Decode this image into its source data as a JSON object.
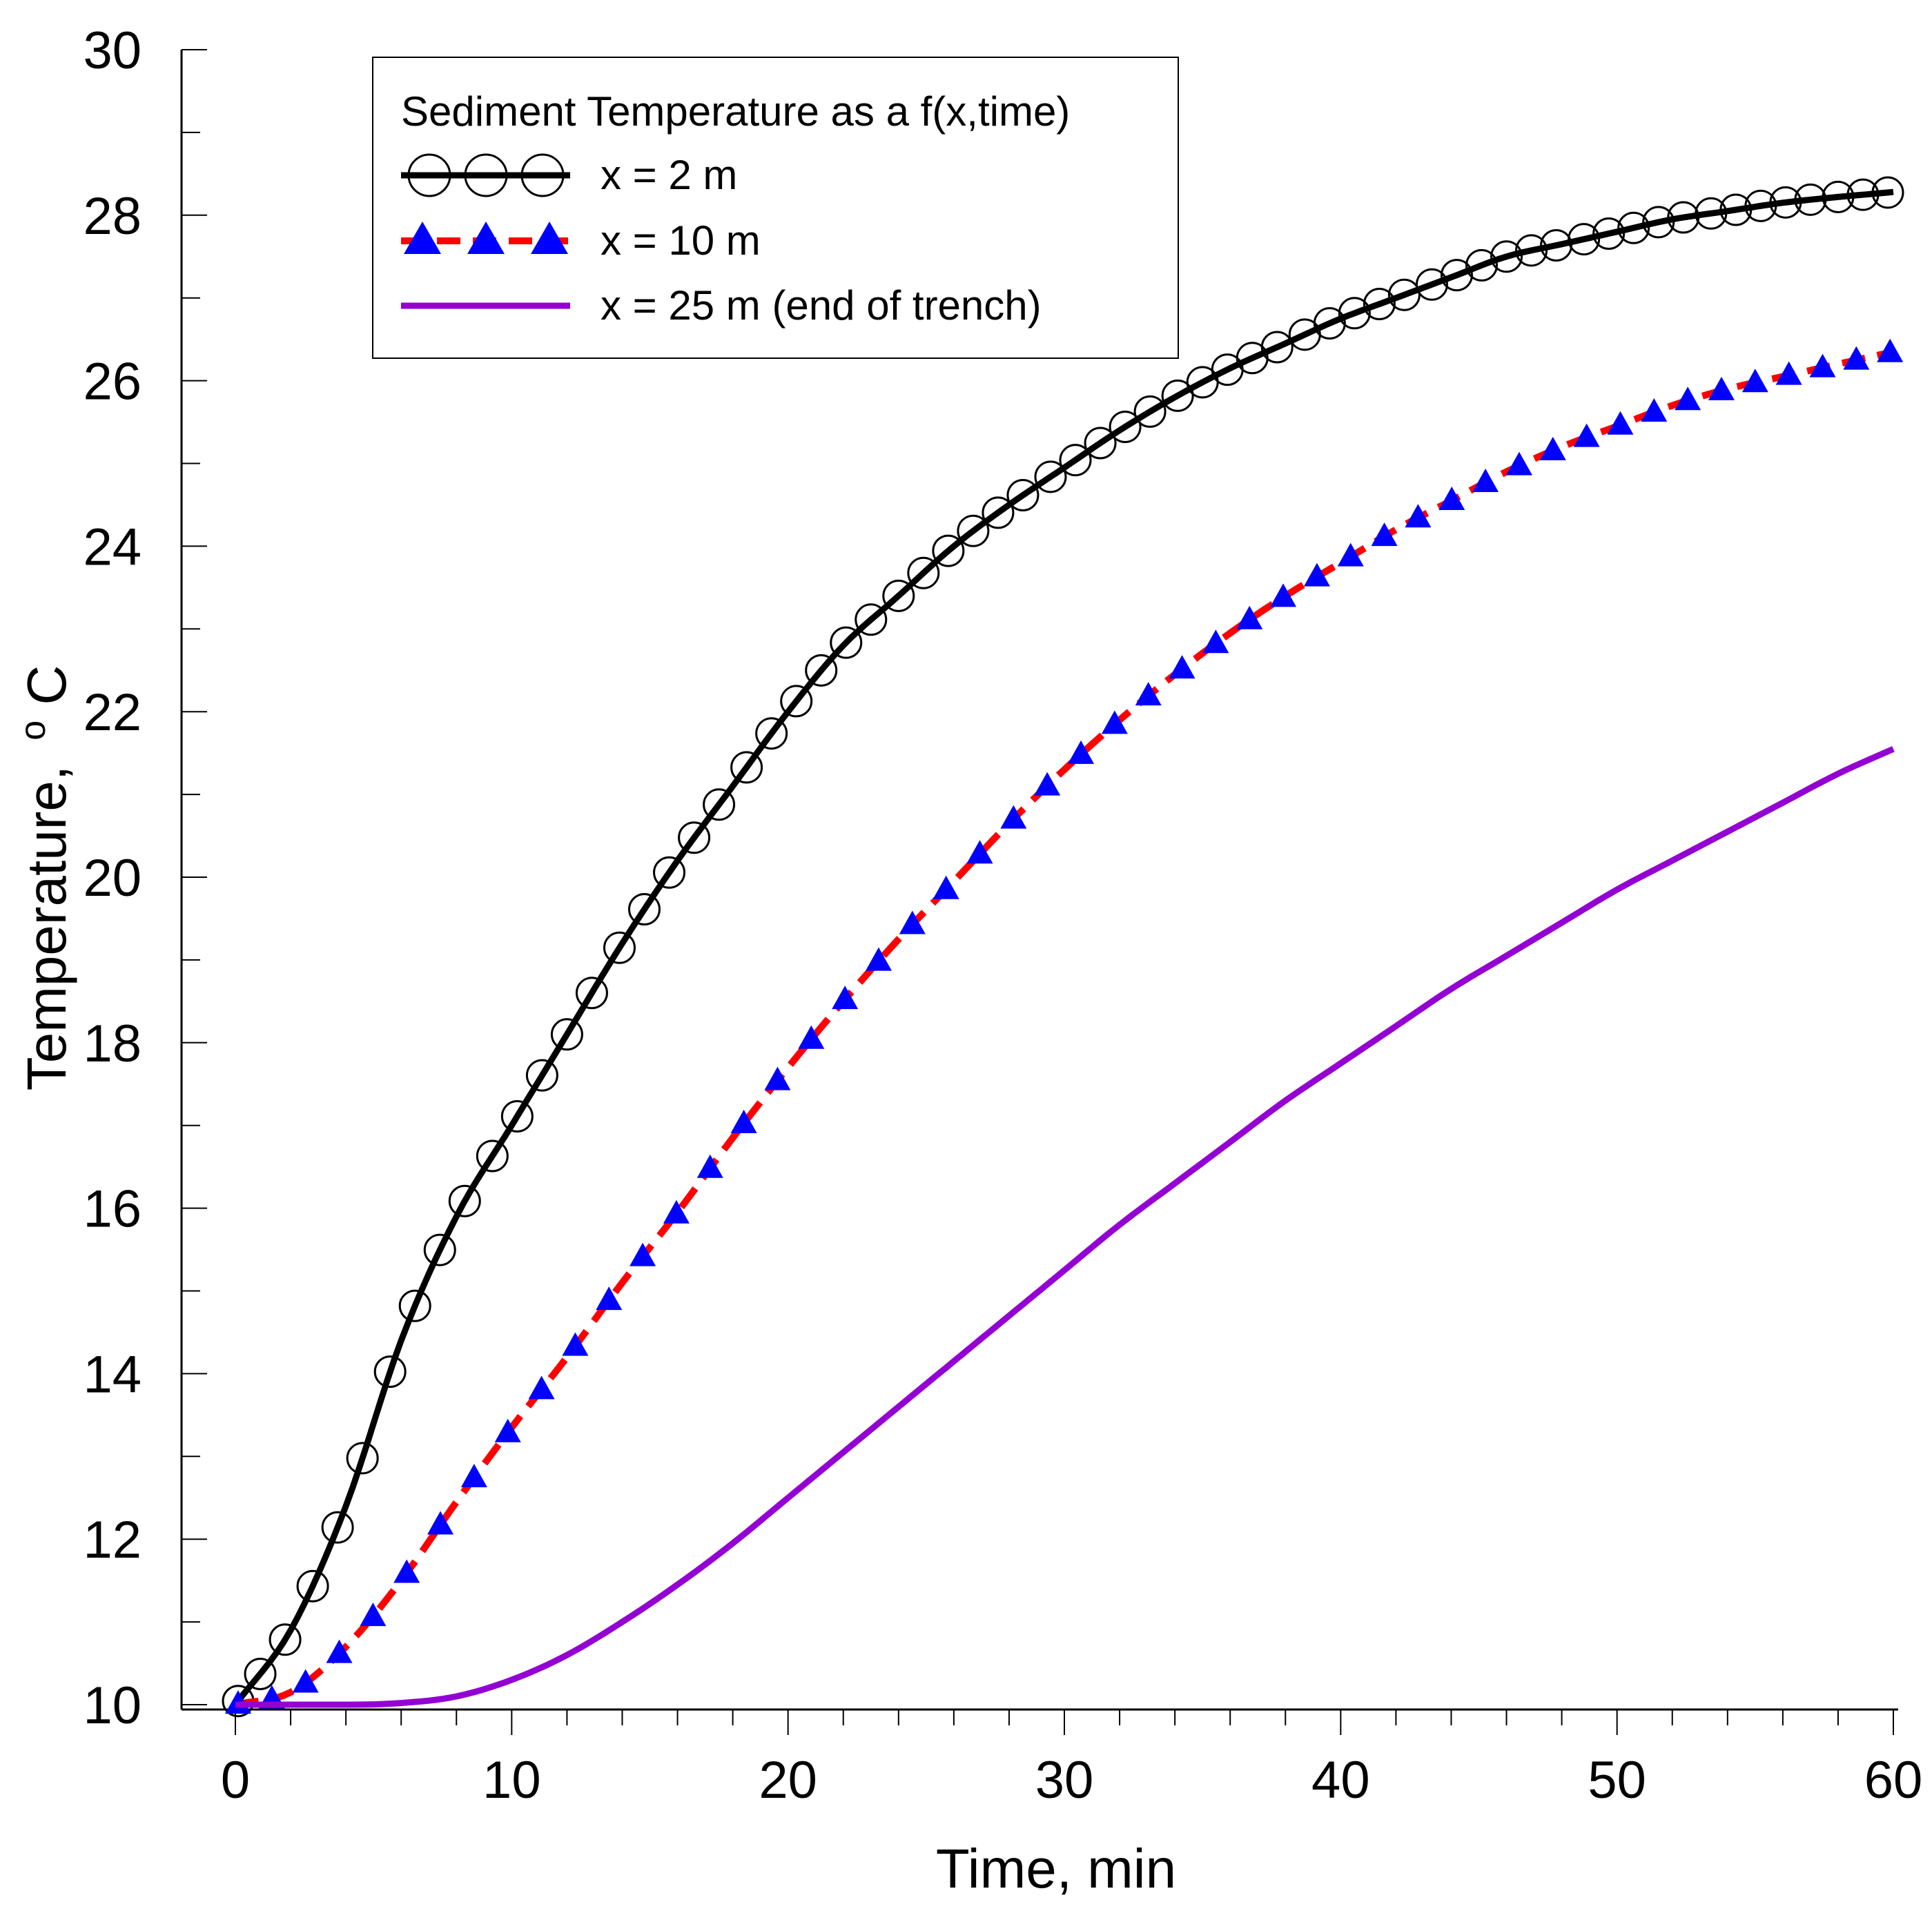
{
  "chart_data": {
    "type": "line",
    "title": "",
    "xlabel": "Time, min",
    "ylabel": "Temperature,",
    "ylabel_unit_sup": "o",
    "ylabel_unit": "C",
    "xlim": [
      0,
      60
    ],
    "ylim": [
      10,
      30
    ],
    "x_ticks": [
      0,
      10,
      20,
      30,
      40,
      50,
      60
    ],
    "y_ticks": [
      10,
      12,
      14,
      16,
      18,
      20,
      22,
      24,
      26,
      28,
      30
    ],
    "grid": false,
    "legend": {
      "title": "Sediment Temperature as a f(x,time)",
      "position": "top-left"
    },
    "series": [
      {
        "name": "x = 2 m",
        "line_color": "#000000",
        "line_style": "solid",
        "marker": "open-circle",
        "x": [
          0,
          2,
          4,
          6,
          8,
          10,
          12,
          14,
          16,
          18,
          20,
          22,
          24,
          26,
          28,
          30,
          32,
          34,
          36,
          38,
          40,
          42,
          44,
          46,
          48,
          50,
          52,
          54,
          56,
          58,
          60
        ],
        "y": [
          10.0,
          10.9,
          12.4,
          14.4,
          15.9,
          17.0,
          18.1,
          19.2,
          20.2,
          21.1,
          22.0,
          22.8,
          23.4,
          24.0,
          24.5,
          24.95,
          25.4,
          25.8,
          26.15,
          26.45,
          26.75,
          27.0,
          27.25,
          27.5,
          27.65,
          27.8,
          27.95,
          28.05,
          28.15,
          28.22,
          28.28
        ],
        "marker_x": [
          0.1,
          0.9,
          1.8,
          2.8,
          3.7,
          4.6,
          5.6,
          6.5,
          7.4,
          8.3,
          9.3,
          10.2,
          11.1,
          12.0,
          12.9,
          13.9,
          14.8,
          15.7,
          16.6,
          17.5,
          18.5,
          19.4,
          20.3,
          21.2,
          22.1,
          23.0,
          24.0,
          24.9,
          25.8,
          26.7,
          27.6,
          28.5,
          29.5,
          30.4,
          31.3,
          32.2,
          33.1,
          34.1,
          35.0,
          35.9,
          36.8,
          37.7,
          38.7,
          39.6,
          40.5,
          41.4,
          42.3,
          43.3,
          44.2,
          45.1,
          46.0,
          46.9,
          47.8,
          48.8,
          49.7,
          50.6,
          51.5,
          52.4,
          53.4,
          54.3,
          55.2,
          56.1,
          57.0,
          58.0,
          58.9,
          59.8
        ]
      },
      {
        "name": "x = 10 m",
        "line_color": "#ff0000",
        "line_style": "dashed",
        "marker": "filled-triangle",
        "marker_color": "#0000ff",
        "x": [
          0,
          2,
          4,
          6,
          8,
          10,
          12,
          14,
          16,
          18,
          20,
          22,
          24,
          26,
          28,
          30,
          32,
          34,
          36,
          38,
          40,
          42,
          44,
          46,
          48,
          50,
          52,
          54,
          56,
          58,
          60
        ],
        "y": [
          10.0,
          10.15,
          10.7,
          11.5,
          12.45,
          13.35,
          14.2,
          15.1,
          15.95,
          16.85,
          17.7,
          18.5,
          19.25,
          19.95,
          20.65,
          21.3,
          21.9,
          22.45,
          22.95,
          23.4,
          23.8,
          24.2,
          24.55,
          24.9,
          25.2,
          25.45,
          25.7,
          25.9,
          26.05,
          26.2,
          26.35
        ],
        "marker_step": 1.22
      },
      {
        "name": "x = 25 m (end of trench)",
        "line_color": "#9400d3",
        "line_style": "solid",
        "marker": "none",
        "x": [
          0,
          2,
          4,
          6,
          8,
          10,
          12,
          14,
          16,
          18,
          20,
          22,
          24,
          26,
          28,
          30,
          32,
          34,
          36,
          38,
          40,
          42,
          44,
          46,
          48,
          50,
          52,
          54,
          56,
          58,
          60
        ],
        "y": [
          10.0,
          10.0,
          10.0,
          10.02,
          10.1,
          10.3,
          10.6,
          11.0,
          11.45,
          11.95,
          12.5,
          13.05,
          13.6,
          14.15,
          14.7,
          15.25,
          15.8,
          16.3,
          16.8,
          17.3,
          17.75,
          18.2,
          18.65,
          19.05,
          19.45,
          19.85,
          20.2,
          20.55,
          20.9,
          21.25,
          21.55
        ]
      }
    ]
  }
}
